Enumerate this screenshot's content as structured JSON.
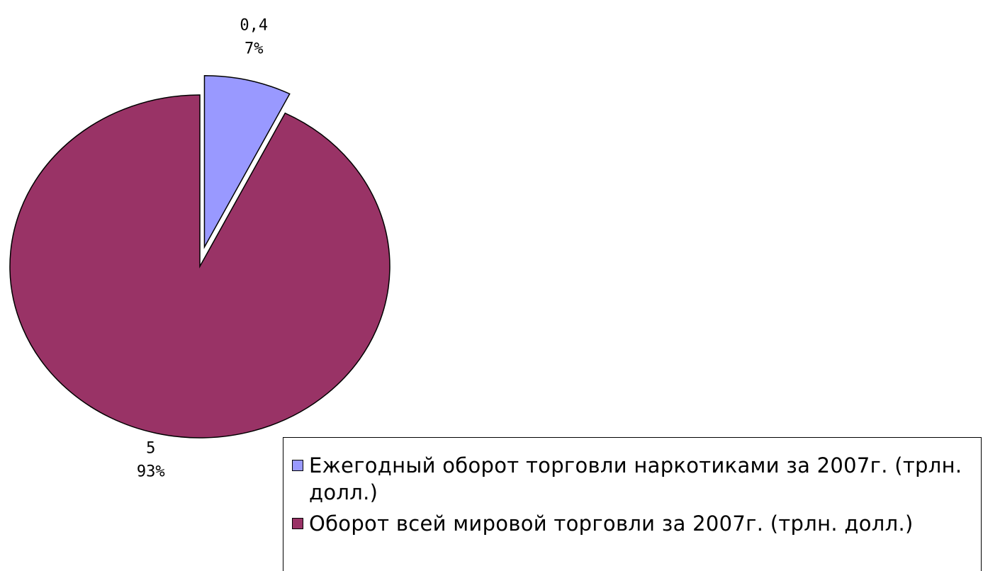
{
  "chart_data": {
    "type": "pie",
    "title": "",
    "slices": [
      {
        "label": "Ежегодный оборот торговли наркотиками за 2007г. (трлн. долл.)",
        "value": 0.4,
        "value_text": "0,4",
        "percent_text": "7%",
        "color": "#9999FF",
        "exploded": true
      },
      {
        "label": "Оборот всей мировой торговли за 2007г. (трлн. долл.)",
        "value": 5,
        "value_text": "5",
        "percent_text": "93%",
        "color": "#993366",
        "exploded": false
      }
    ],
    "legend_position": "bottom-right"
  }
}
